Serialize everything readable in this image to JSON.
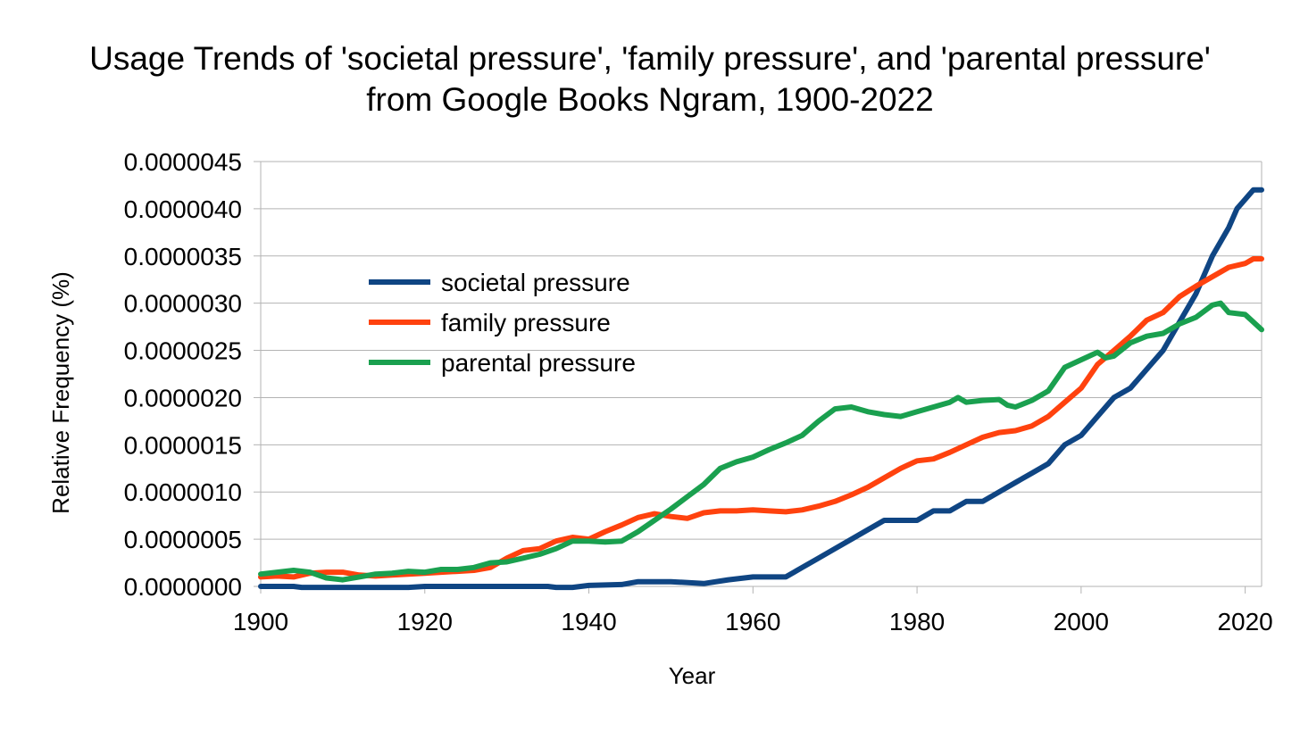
{
  "chart_data": {
    "type": "line",
    "title": "Usage Trends of 'societal pressure', 'family pressure', and 'parental pressure'",
    "subtitle": "from Google Books Ngram, 1900-2022",
    "xlabel": "Year",
    "ylabel": "Relative Frequency (%)",
    "xlim": [
      1900,
      2022
    ],
    "ylim": [
      0,
      4.5e-06
    ],
    "x_ticks": [
      1900,
      1920,
      1940,
      1960,
      1980,
      2000,
      2020
    ],
    "x_tick_labels": [
      "1900",
      "1920",
      "1940",
      "1960",
      "1980",
      "2000",
      "2020"
    ],
    "y_ticks": [
      0,
      5e-07,
      1e-06,
      1.5e-06,
      2e-06,
      2.5e-06,
      3e-06,
      3.5e-06,
      4e-06,
      4.5e-06
    ],
    "y_tick_labels": [
      "0.0000000",
      "0.0000005",
      "0.0000010",
      "0.0000015",
      "0.0000020",
      "0.0000025",
      "0.0000030",
      "0.0000035",
      "0.0000040",
      "0.0000045"
    ],
    "grid": "horizontal",
    "legend_position": "upper-left inside plot",
    "series": [
      {
        "name": "societal pressure",
        "color": "#0f4583",
        "x": [
          1900,
          1904,
          1905,
          1918,
          1920,
          1930,
          1935,
          1936,
          1938,
          1940,
          1944,
          1946,
          1950,
          1954,
          1957,
          1960,
          1962,
          1964,
          1966,
          1968,
          1970,
          1972,
          1974,
          1976,
          1978,
          1980,
          1982,
          1984,
          1986,
          1988,
          1990,
          1992,
          1994,
          1996,
          1998,
          2000,
          2002,
          2004,
          2006,
          2008,
          2010,
          2012,
          2014,
          2016,
          2018,
          2019,
          2020,
          2021,
          2022
        ],
        "values": [
          0.0,
          0.0,
          -1e-08,
          -1e-08,
          0.0,
          0.0,
          0.0,
          -1e-08,
          -1e-08,
          1e-08,
          2e-08,
          5e-08,
          5e-08,
          3e-08,
          7e-08,
          1e-07,
          1e-07,
          1e-07,
          2e-07,
          3e-07,
          4e-07,
          5e-07,
          6e-07,
          7e-07,
          7e-07,
          7e-07,
          8e-07,
          8e-07,
          9e-07,
          9e-07,
          1e-06,
          1.1e-06,
          1.2e-06,
          1.3e-06,
          1.5e-06,
          1.6e-06,
          1.8e-06,
          2e-06,
          2.1e-06,
          2.3e-06,
          2.5e-06,
          2.8e-06,
          3.1e-06,
          3.5e-06,
          3.8e-06,
          4e-06,
          4.1e-06,
          4.2e-06,
          4.2e-06
        ]
      },
      {
        "name": "family pressure",
        "color": "#ff420e",
        "x": [
          1900,
          1902,
          1904,
          1906,
          1908,
          1910,
          1912,
          1914,
          1916,
          1918,
          1920,
          1922,
          1924,
          1926,
          1928,
          1930,
          1932,
          1934,
          1936,
          1938,
          1940,
          1942,
          1944,
          1946,
          1948,
          1950,
          1952,
          1954,
          1956,
          1958,
          1960,
          1962,
          1964,
          1966,
          1968,
          1970,
          1972,
          1974,
          1976,
          1978,
          1980,
          1982,
          1984,
          1986,
          1988,
          1990,
          1992,
          1994,
          1996,
          1998,
          2000,
          2002,
          2004,
          2006,
          2008,
          2010,
          2012,
          2014,
          2016,
          2018,
          2020,
          2021,
          2022
        ],
        "values": [
          1e-07,
          1.1e-07,
          1e-07,
          1.4e-07,
          1.5e-07,
          1.5e-07,
          1.2e-07,
          1.1e-07,
          1.2e-07,
          1.3e-07,
          1.4e-07,
          1.5e-07,
          1.6e-07,
          1.7e-07,
          2e-07,
          3e-07,
          3.8e-07,
          4e-07,
          4.8e-07,
          5.2e-07,
          5e-07,
          5.8e-07,
          6.5e-07,
          7.3e-07,
          7.7e-07,
          7.4e-07,
          7.2e-07,
          7.8e-07,
          8e-07,
          8e-07,
          8.1e-07,
          8e-07,
          7.9e-07,
          8.1e-07,
          8.5e-07,
          9e-07,
          9.7e-07,
          1.05e-06,
          1.15e-06,
          1.25e-06,
          1.33e-06,
          1.35e-06,
          1.42e-06,
          1.5e-06,
          1.58e-06,
          1.63e-06,
          1.65e-06,
          1.7e-06,
          1.8e-06,
          1.95e-06,
          2.1e-06,
          2.35e-06,
          2.5e-06,
          2.65e-06,
          2.82e-06,
          2.9e-06,
          3.07e-06,
          3.18e-06,
          3.28e-06,
          3.38e-06,
          3.42e-06,
          3.47e-06,
          3.47e-06
        ]
      },
      {
        "name": "parental pressure",
        "color": "#1aa04f",
        "x": [
          1900,
          1902,
          1904,
          1906,
          1908,
          1910,
          1912,
          1914,
          1916,
          1918,
          1920,
          1922,
          1924,
          1926,
          1928,
          1930,
          1932,
          1934,
          1936,
          1938,
          1940,
          1942,
          1944,
          1946,
          1948,
          1950,
          1952,
          1954,
          1956,
          1958,
          1960,
          1962,
          1964,
          1966,
          1968,
          1970,
          1972,
          1974,
          1976,
          1978,
          1980,
          1982,
          1984,
          1985,
          1986,
          1988,
          1990,
          1991,
          1992,
          1994,
          1996,
          1998,
          2000,
          2002,
          2003,
          2004,
          2006,
          2008,
          2010,
          2012,
          2014,
          2016,
          2017,
          2018,
          2020,
          2022
        ],
        "values": [
          1.3e-07,
          1.5e-07,
          1.7e-07,
          1.5e-07,
          9e-08,
          7e-08,
          1e-07,
          1.3e-07,
          1.4e-07,
          1.6e-07,
          1.5e-07,
          1.8e-07,
          1.8e-07,
          2e-07,
          2.5e-07,
          2.6e-07,
          3e-07,
          3.4e-07,
          4e-07,
          4.8e-07,
          4.8e-07,
          4.7e-07,
          4.8e-07,
          5.8e-07,
          7e-07,
          8.2e-07,
          9.5e-07,
          1.08e-06,
          1.25e-06,
          1.32e-06,
          1.37e-06,
          1.45e-06,
          1.52e-06,
          1.6e-06,
          1.75e-06,
          1.88e-06,
          1.9e-06,
          1.85e-06,
          1.82e-06,
          1.8e-06,
          1.85e-06,
          1.9e-06,
          1.95e-06,
          2e-06,
          1.95e-06,
          1.97e-06,
          1.98e-06,
          1.92e-06,
          1.9e-06,
          1.97e-06,
          2.07e-06,
          2.32e-06,
          2.4e-06,
          2.48e-06,
          2.42e-06,
          2.44e-06,
          2.58e-06,
          2.65e-06,
          2.68e-06,
          2.78e-06,
          2.85e-06,
          2.98e-06,
          3e-06,
          2.9e-06,
          2.88e-06,
          2.72e-06
        ]
      }
    ]
  }
}
